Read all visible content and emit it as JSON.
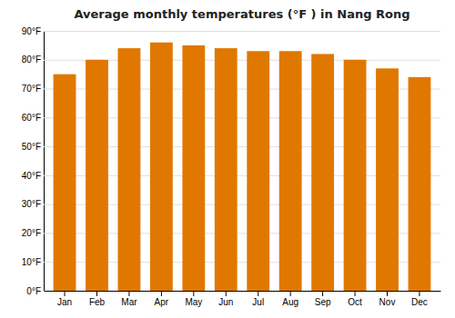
{
  "chart_data": {
    "type": "bar",
    "title": "Average monthly temperatures (°F ) in Nang Rong",
    "categories": [
      "Jan",
      "Feb",
      "Mar",
      "Apr",
      "May",
      "Jun",
      "Jul",
      "Aug",
      "Sep",
      "Oct",
      "Nov",
      "Dec"
    ],
    "values": [
      75,
      80,
      84,
      86,
      85,
      84,
      83,
      83,
      82,
      80,
      77,
      74
    ],
    "color": "#E07800",
    "ylim": [
      0,
      90
    ],
    "yticks": [
      {
        "value": 0,
        "label": "0°F"
      },
      {
        "value": 10,
        "label": "10°F"
      },
      {
        "value": 20,
        "label": "20°F"
      },
      {
        "value": 30,
        "label": "30°F"
      },
      {
        "value": 40,
        "label": "40°F"
      },
      {
        "value": 50,
        "label": "50°F"
      },
      {
        "value": 60,
        "label": "60°F"
      },
      {
        "value": 70,
        "label": "70°F"
      },
      {
        "value": 80,
        "label": "80°F"
      },
      {
        "value": 90,
        "label": "90°F"
      }
    ],
    "grid": true
  }
}
